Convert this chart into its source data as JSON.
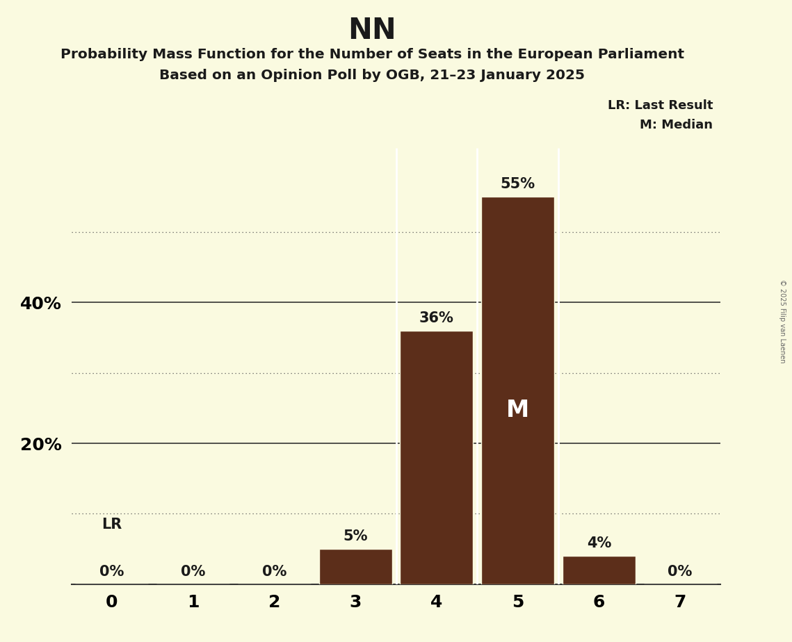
{
  "title": "NN",
  "subtitle1": "Probability Mass Function for the Number of Seats in the European Parliament",
  "subtitle2": "Based on an Opinion Poll by OGB, 21–23 January 2025",
  "copyright": "© 2025 Filip van Laenen",
  "x_values": [
    0,
    1,
    2,
    3,
    4,
    5,
    6,
    7
  ],
  "y_values": [
    0,
    0,
    0,
    5,
    36,
    55,
    4,
    0
  ],
  "bar_color": "#5C2E1A",
  "background_color": "#FAFAE0",
  "median_seat": 5,
  "lr_seat": 0,
  "legend_lr": "LR: Last Result",
  "legend_m": "M: Median",
  "ylim": [
    0,
    62
  ],
  "dotted_grid_levels": [
    10,
    30,
    50
  ],
  "solid_grid_levels": [
    20,
    40
  ],
  "bar_width": 0.9
}
